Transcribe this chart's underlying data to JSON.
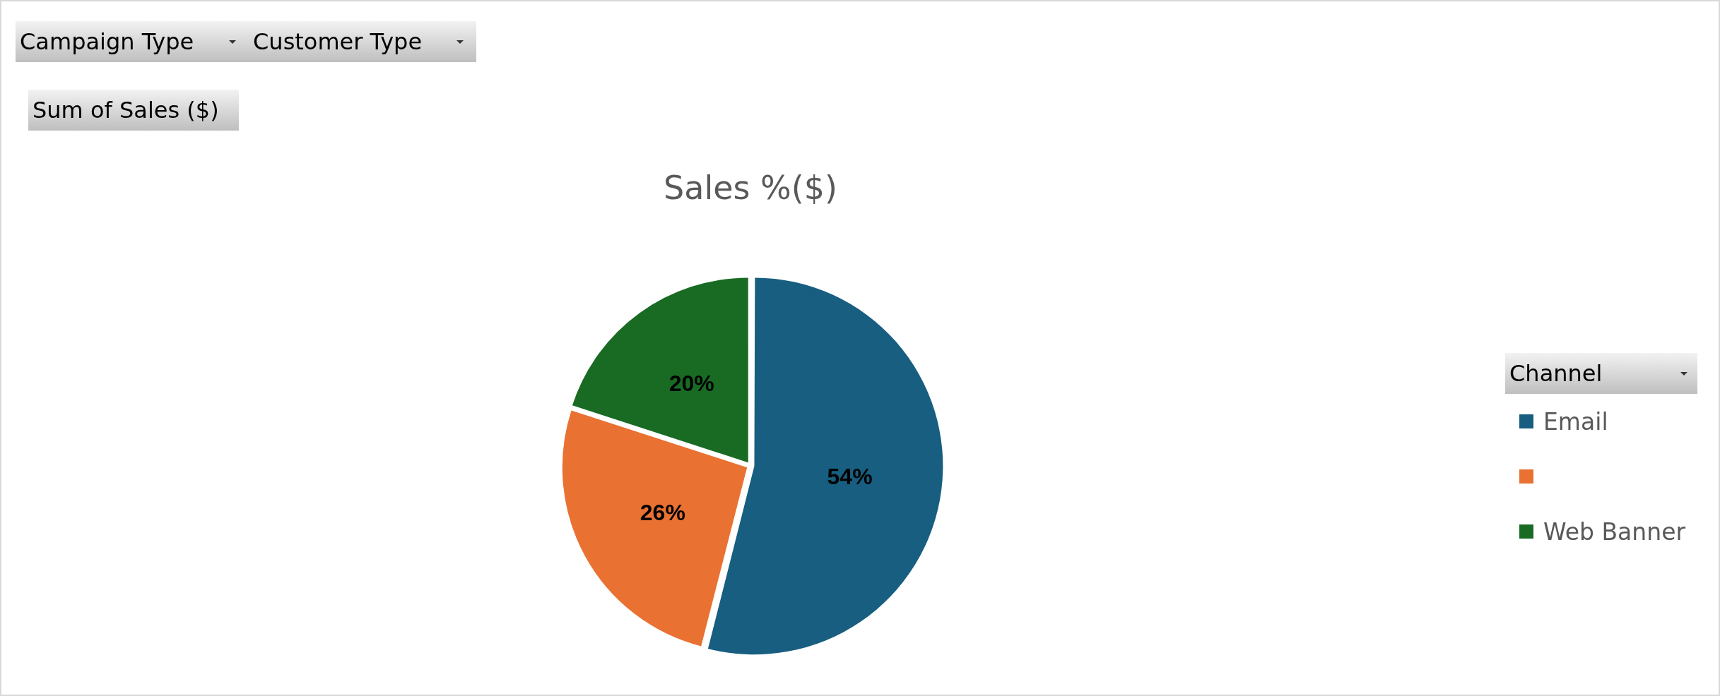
{
  "chart_data": {
    "type": "pie",
    "title": "Sales %($)",
    "categories": [
      "Email",
      null,
      "Web Banner"
    ],
    "values": [
      54,
      26,
      20
    ],
    "colors": [
      "#175e80",
      "#e97132",
      "#196b24"
    ],
    "value_labels": [
      "54%",
      "26%",
      "20%"
    ],
    "legend": "right",
    "legend_title": "Channel",
    "annotations": [
      "Campaign Type",
      "Customer Type",
      "Sum of Sales ($)"
    ]
  }
}
